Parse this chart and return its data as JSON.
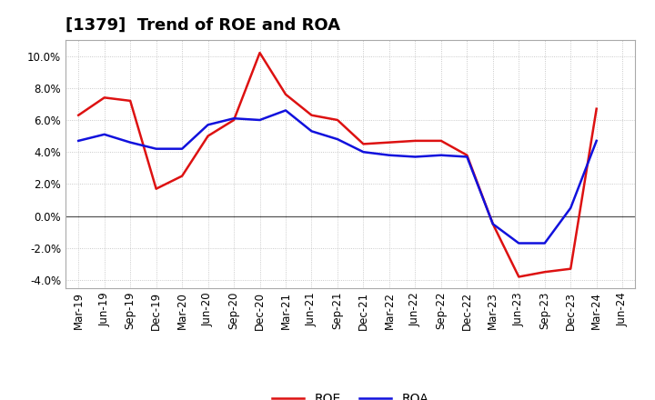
{
  "title": "[1379]  Trend of ROE and ROA",
  "x_labels": [
    "Mar-19",
    "Jun-19",
    "Sep-19",
    "Dec-19",
    "Mar-20",
    "Jun-20",
    "Sep-20",
    "Dec-20",
    "Mar-21",
    "Jun-21",
    "Sep-21",
    "Dec-21",
    "Mar-22",
    "Jun-22",
    "Sep-22",
    "Dec-22",
    "Mar-23",
    "Jun-23",
    "Sep-23",
    "Dec-23",
    "Mar-24",
    "Jun-24"
  ],
  "roe": [
    6.3,
    7.4,
    7.2,
    1.7,
    2.5,
    5.0,
    6.0,
    10.2,
    7.6,
    6.3,
    6.0,
    4.5,
    4.6,
    4.7,
    4.7,
    3.8,
    -0.5,
    -3.8,
    -3.5,
    -3.3,
    6.7,
    null
  ],
  "roa": [
    4.7,
    5.1,
    4.6,
    4.2,
    4.2,
    5.7,
    6.1,
    6.0,
    6.6,
    5.3,
    4.8,
    4.0,
    3.8,
    3.7,
    3.8,
    3.7,
    -0.5,
    -1.7,
    -1.7,
    0.5,
    4.7,
    null
  ],
  "roe_color": "#dd1111",
  "roa_color": "#1111dd",
  "background_color": "#ffffff",
  "plot_bg_color": "#ffffff",
  "grid_color": "#bbbbbb",
  "ylim": [
    -4.5,
    11.0
  ],
  "yticks": [
    -4.0,
    -2.0,
    0.0,
    2.0,
    4.0,
    6.0,
    8.0,
    10.0
  ],
  "linewidth": 1.8,
  "title_fontsize": 13,
  "tick_fontsize": 8.5
}
